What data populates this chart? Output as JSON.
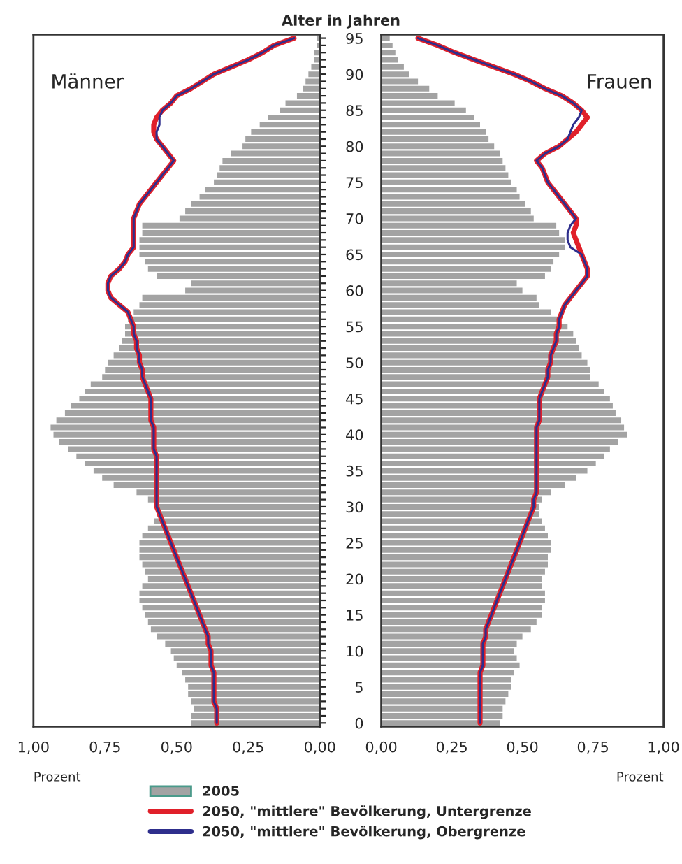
{
  "chart_data": [
    {
      "type": "bar",
      "orientation": "horizontal",
      "title": "Alter in Jahren",
      "xlabel": "Prozent",
      "annotations": [
        "Männer"
      ],
      "legend": "bottom",
      "tick_labels": "x",
      "grid": false,
      "categories": [
        "95",
        null,
        null,
        null,
        null,
        "90",
        null,
        null,
        null,
        null,
        "85",
        null,
        null,
        null,
        null,
        "80",
        null,
        null,
        null,
        null,
        "75",
        null,
        null,
        null,
        null,
        "70",
        null,
        null,
        null,
        null,
        "65",
        null,
        null,
        null,
        null,
        "60",
        null,
        null,
        null,
        null,
        "55",
        null,
        null,
        null,
        null,
        "50",
        null,
        null,
        null,
        null,
        "45",
        null,
        null,
        null,
        null,
        "40",
        null,
        null,
        null,
        null,
        "35",
        null,
        null,
        null,
        null,
        "30",
        null,
        null,
        null,
        null,
        "25",
        null,
        null,
        null,
        null,
        "20",
        null,
        null,
        null,
        null,
        "15",
        null,
        null,
        null,
        null,
        "10",
        null,
        null,
        null,
        null,
        "5",
        null,
        null,
        null,
        null,
        "0"
      ],
      "xlim": [
        1.0,
        0.0
      ],
      "xticks": [
        {
          "value": 1.0,
          "label": "1,00"
        },
        {
          "value": 0.75,
          "label": "0,75"
        },
        {
          "value": 0.5,
          "label": "0,50"
        },
        {
          "value": 0.25,
          "label": "0,25"
        },
        {
          "value": 0.0,
          "label": "0,00"
        }
      ],
      "series": [
        {
          "name": "2005",
          "color": "#a3a3a3",
          "values": [
            0.01,
            0.01,
            0.02,
            0.02,
            0.03,
            0.04,
            0.05,
            0.06,
            0.08,
            0.12,
            0.14,
            0.18,
            0.21,
            0.24,
            0.26,
            0.27,
            0.31,
            0.34,
            0.35,
            0.36,
            0.37,
            0.4,
            0.42,
            0.45,
            0.47,
            0.49,
            0.62,
            0.62,
            0.63,
            0.63,
            0.63,
            0.61,
            0.6,
            0.57,
            0.45,
            0.47,
            0.62,
            0.63,
            0.65,
            0.67,
            0.68,
            0.68,
            0.69,
            0.7,
            0.72,
            0.74,
            0.75,
            0.76,
            0.8,
            0.82,
            0.84,
            0.87,
            0.89,
            0.92,
            0.94,
            0.93,
            0.91,
            0.88,
            0.85,
            0.82,
            0.79,
            0.76,
            0.72,
            0.64,
            0.6,
            0.57,
            0.57,
            0.58,
            0.6,
            0.62,
            0.63,
            0.63,
            0.63,
            0.62,
            0.61,
            0.6,
            0.62,
            0.63,
            0.63,
            0.62,
            0.61,
            0.6,
            0.59,
            0.57,
            0.54,
            0.52,
            0.51,
            0.5,
            0.48,
            0.47,
            0.46,
            0.46,
            0.45,
            0.44,
            0.45,
            0.45
          ]
        },
        {
          "name": "2050, \"mittlere\" Bevölkerung, Untergrenze",
          "type": "line",
          "color": "#e0202a",
          "values": [
            0.09,
            0.16,
            0.2,
            0.25,
            0.31,
            0.37,
            0.41,
            0.45,
            0.5,
            0.52,
            0.55,
            0.57,
            0.58,
            0.58,
            0.57,
            0.55,
            0.53,
            0.51,
            0.53,
            0.55,
            0.57,
            0.59,
            0.61,
            0.63,
            0.64,
            0.65,
            0.65,
            0.65,
            0.65,
            0.65,
            0.67,
            0.68,
            0.7,
            0.73,
            0.74,
            0.74,
            0.73,
            0.7,
            0.67,
            0.66,
            0.65,
            0.65,
            0.64,
            0.64,
            0.63,
            0.63,
            0.62,
            0.62,
            0.61,
            0.6,
            0.59,
            0.59,
            0.59,
            0.59,
            0.58,
            0.58,
            0.58,
            0.58,
            0.57,
            0.57,
            0.57,
            0.57,
            0.57,
            0.57,
            0.57,
            0.57,
            0.56,
            0.55,
            0.54,
            0.53,
            0.52,
            0.51,
            0.5,
            0.49,
            0.48,
            0.47,
            0.46,
            0.45,
            0.44,
            0.43,
            0.42,
            0.41,
            0.4,
            0.39,
            0.39,
            0.38,
            0.38,
            0.38,
            0.37,
            0.37,
            0.37,
            0.37,
            0.37,
            0.36,
            0.36,
            0.36
          ]
        },
        {
          "name": "2050, \"mittlere\" Bevölkerung, Obergrenze",
          "type": "line",
          "color": "#2e2e8c",
          "values": [
            0.09,
            0.16,
            0.2,
            0.25,
            0.31,
            0.37,
            0.41,
            0.45,
            0.5,
            0.52,
            0.55,
            0.56,
            0.56,
            0.57,
            0.57,
            0.55,
            0.53,
            0.51,
            0.53,
            0.55,
            0.57,
            0.59,
            0.61,
            0.63,
            0.64,
            0.65,
            0.65,
            0.65,
            0.65,
            0.65,
            0.67,
            0.68,
            0.7,
            0.73,
            0.74,
            0.74,
            0.73,
            0.7,
            0.67,
            0.66,
            0.65,
            0.65,
            0.64,
            0.64,
            0.63,
            0.63,
            0.62,
            0.62,
            0.61,
            0.6,
            0.59,
            0.59,
            0.59,
            0.59,
            0.58,
            0.58,
            0.58,
            0.58,
            0.57,
            0.57,
            0.57,
            0.57,
            0.57,
            0.57,
            0.57,
            0.57,
            0.56,
            0.55,
            0.54,
            0.53,
            0.52,
            0.51,
            0.5,
            0.49,
            0.48,
            0.47,
            0.46,
            0.45,
            0.44,
            0.43,
            0.42,
            0.41,
            0.4,
            0.39,
            0.39,
            0.38,
            0.38,
            0.38,
            0.37,
            0.37,
            0.37,
            0.37,
            0.37,
            0.36,
            0.36,
            0.36
          ]
        }
      ]
    },
    {
      "type": "bar",
      "orientation": "horizontal",
      "xlabel": "Prozent",
      "annotations": [
        "Frauen"
      ],
      "grid": false,
      "categories": [
        "95",
        null,
        null,
        null,
        null,
        "90",
        null,
        null,
        null,
        null,
        "85",
        null,
        null,
        null,
        null,
        "80",
        null,
        null,
        null,
        null,
        "75",
        null,
        null,
        null,
        null,
        "70",
        null,
        null,
        null,
        null,
        "65",
        null,
        null,
        null,
        null,
        "60",
        null,
        null,
        null,
        null,
        "55",
        null,
        null,
        null,
        null,
        "50",
        null,
        null,
        null,
        null,
        "45",
        null,
        null,
        null,
        null,
        "40",
        null,
        null,
        null,
        null,
        "35",
        null,
        null,
        null,
        null,
        "30",
        null,
        null,
        null,
        null,
        "25",
        null,
        null,
        null,
        null,
        "20",
        null,
        null,
        null,
        null,
        "15",
        null,
        null,
        null,
        null,
        "10",
        null,
        null,
        null,
        null,
        "5",
        null,
        null,
        null,
        null,
        "0"
      ],
      "xlim": [
        0.0,
        1.0
      ],
      "xticks": [
        {
          "value": 0.0,
          "label": "0,00"
        },
        {
          "value": 0.25,
          "label": "0,25"
        },
        {
          "value": 0.5,
          "label": "0,50"
        },
        {
          "value": 0.75,
          "label": "0,75"
        },
        {
          "value": 1.0,
          "label": "1,00"
        }
      ],
      "series": [
        {
          "color": "#a3a3a3",
          "values": [
            0.03,
            0.04,
            0.05,
            0.06,
            0.08,
            0.1,
            0.13,
            0.17,
            0.2,
            0.26,
            0.3,
            0.33,
            0.35,
            0.37,
            0.38,
            0.4,
            0.42,
            0.43,
            0.44,
            0.45,
            0.46,
            0.48,
            0.49,
            0.51,
            0.53,
            0.54,
            0.62,
            0.63,
            0.65,
            0.65,
            0.63,
            0.61,
            0.6,
            0.58,
            0.48,
            0.5,
            0.55,
            0.56,
            0.6,
            0.63,
            0.66,
            0.68,
            0.69,
            0.7,
            0.71,
            0.73,
            0.74,
            0.74,
            0.77,
            0.79,
            0.81,
            0.82,
            0.83,
            0.85,
            0.86,
            0.87,
            0.84,
            0.81,
            0.79,
            0.76,
            0.73,
            0.69,
            0.65,
            0.6,
            0.57,
            0.56,
            0.56,
            0.57,
            0.58,
            0.59,
            0.6,
            0.6,
            0.59,
            0.59,
            0.58,
            0.57,
            0.57,
            0.58,
            0.58,
            0.57,
            0.57,
            0.55,
            0.53,
            0.5,
            0.48,
            0.47,
            0.48,
            0.49,
            0.47,
            0.46,
            0.46,
            0.45,
            0.44,
            0.43,
            0.43,
            0.42
          ]
        },
        {
          "type": "line",
          "color": "#e0202a",
          "values": [
            0.13,
            0.2,
            0.26,
            0.33,
            0.4,
            0.47,
            0.53,
            0.58,
            0.64,
            0.68,
            0.71,
            0.73,
            0.71,
            0.69,
            0.66,
            0.63,
            0.58,
            0.55,
            0.57,
            0.58,
            0.59,
            0.61,
            0.63,
            0.65,
            0.67,
            0.69,
            0.69,
            0.68,
            0.69,
            0.7,
            0.71,
            0.72,
            0.73,
            0.73,
            0.71,
            0.69,
            0.67,
            0.65,
            0.64,
            0.63,
            0.63,
            0.62,
            0.62,
            0.61,
            0.6,
            0.6,
            0.59,
            0.59,
            0.58,
            0.57,
            0.56,
            0.56,
            0.56,
            0.56,
            0.55,
            0.55,
            0.55,
            0.55,
            0.55,
            0.55,
            0.55,
            0.55,
            0.55,
            0.55,
            0.54,
            0.54,
            0.53,
            0.52,
            0.51,
            0.5,
            0.49,
            0.48,
            0.47,
            0.46,
            0.45,
            0.44,
            0.43,
            0.42,
            0.41,
            0.4,
            0.39,
            0.38,
            0.37,
            0.37,
            0.36,
            0.36,
            0.36,
            0.36,
            0.35,
            0.35,
            0.35,
            0.35,
            0.35,
            0.35,
            0.35,
            0.35
          ]
        },
        {
          "type": "line",
          "color": "#2e2e8c",
          "values": [
            0.13,
            0.2,
            0.26,
            0.33,
            0.4,
            0.47,
            0.53,
            0.58,
            0.64,
            0.68,
            0.71,
            0.7,
            0.68,
            0.67,
            0.66,
            0.63,
            0.58,
            0.55,
            0.57,
            0.58,
            0.59,
            0.61,
            0.63,
            0.65,
            0.67,
            0.69,
            0.67,
            0.66,
            0.66,
            0.67,
            0.71,
            0.72,
            0.73,
            0.73,
            0.71,
            0.69,
            0.67,
            0.65,
            0.64,
            0.63,
            0.63,
            0.62,
            0.62,
            0.61,
            0.6,
            0.6,
            0.59,
            0.59,
            0.58,
            0.57,
            0.56,
            0.56,
            0.56,
            0.56,
            0.55,
            0.55,
            0.55,
            0.55,
            0.55,
            0.55,
            0.55,
            0.55,
            0.55,
            0.55,
            0.54,
            0.54,
            0.53,
            0.52,
            0.51,
            0.5,
            0.49,
            0.48,
            0.47,
            0.46,
            0.45,
            0.44,
            0.43,
            0.42,
            0.41,
            0.4,
            0.39,
            0.38,
            0.37,
            0.37,
            0.36,
            0.36,
            0.36,
            0.36,
            0.35,
            0.35,
            0.35,
            0.35,
            0.35,
            0.35,
            0.35,
            0.35
          ]
        }
      ]
    }
  ]
}
